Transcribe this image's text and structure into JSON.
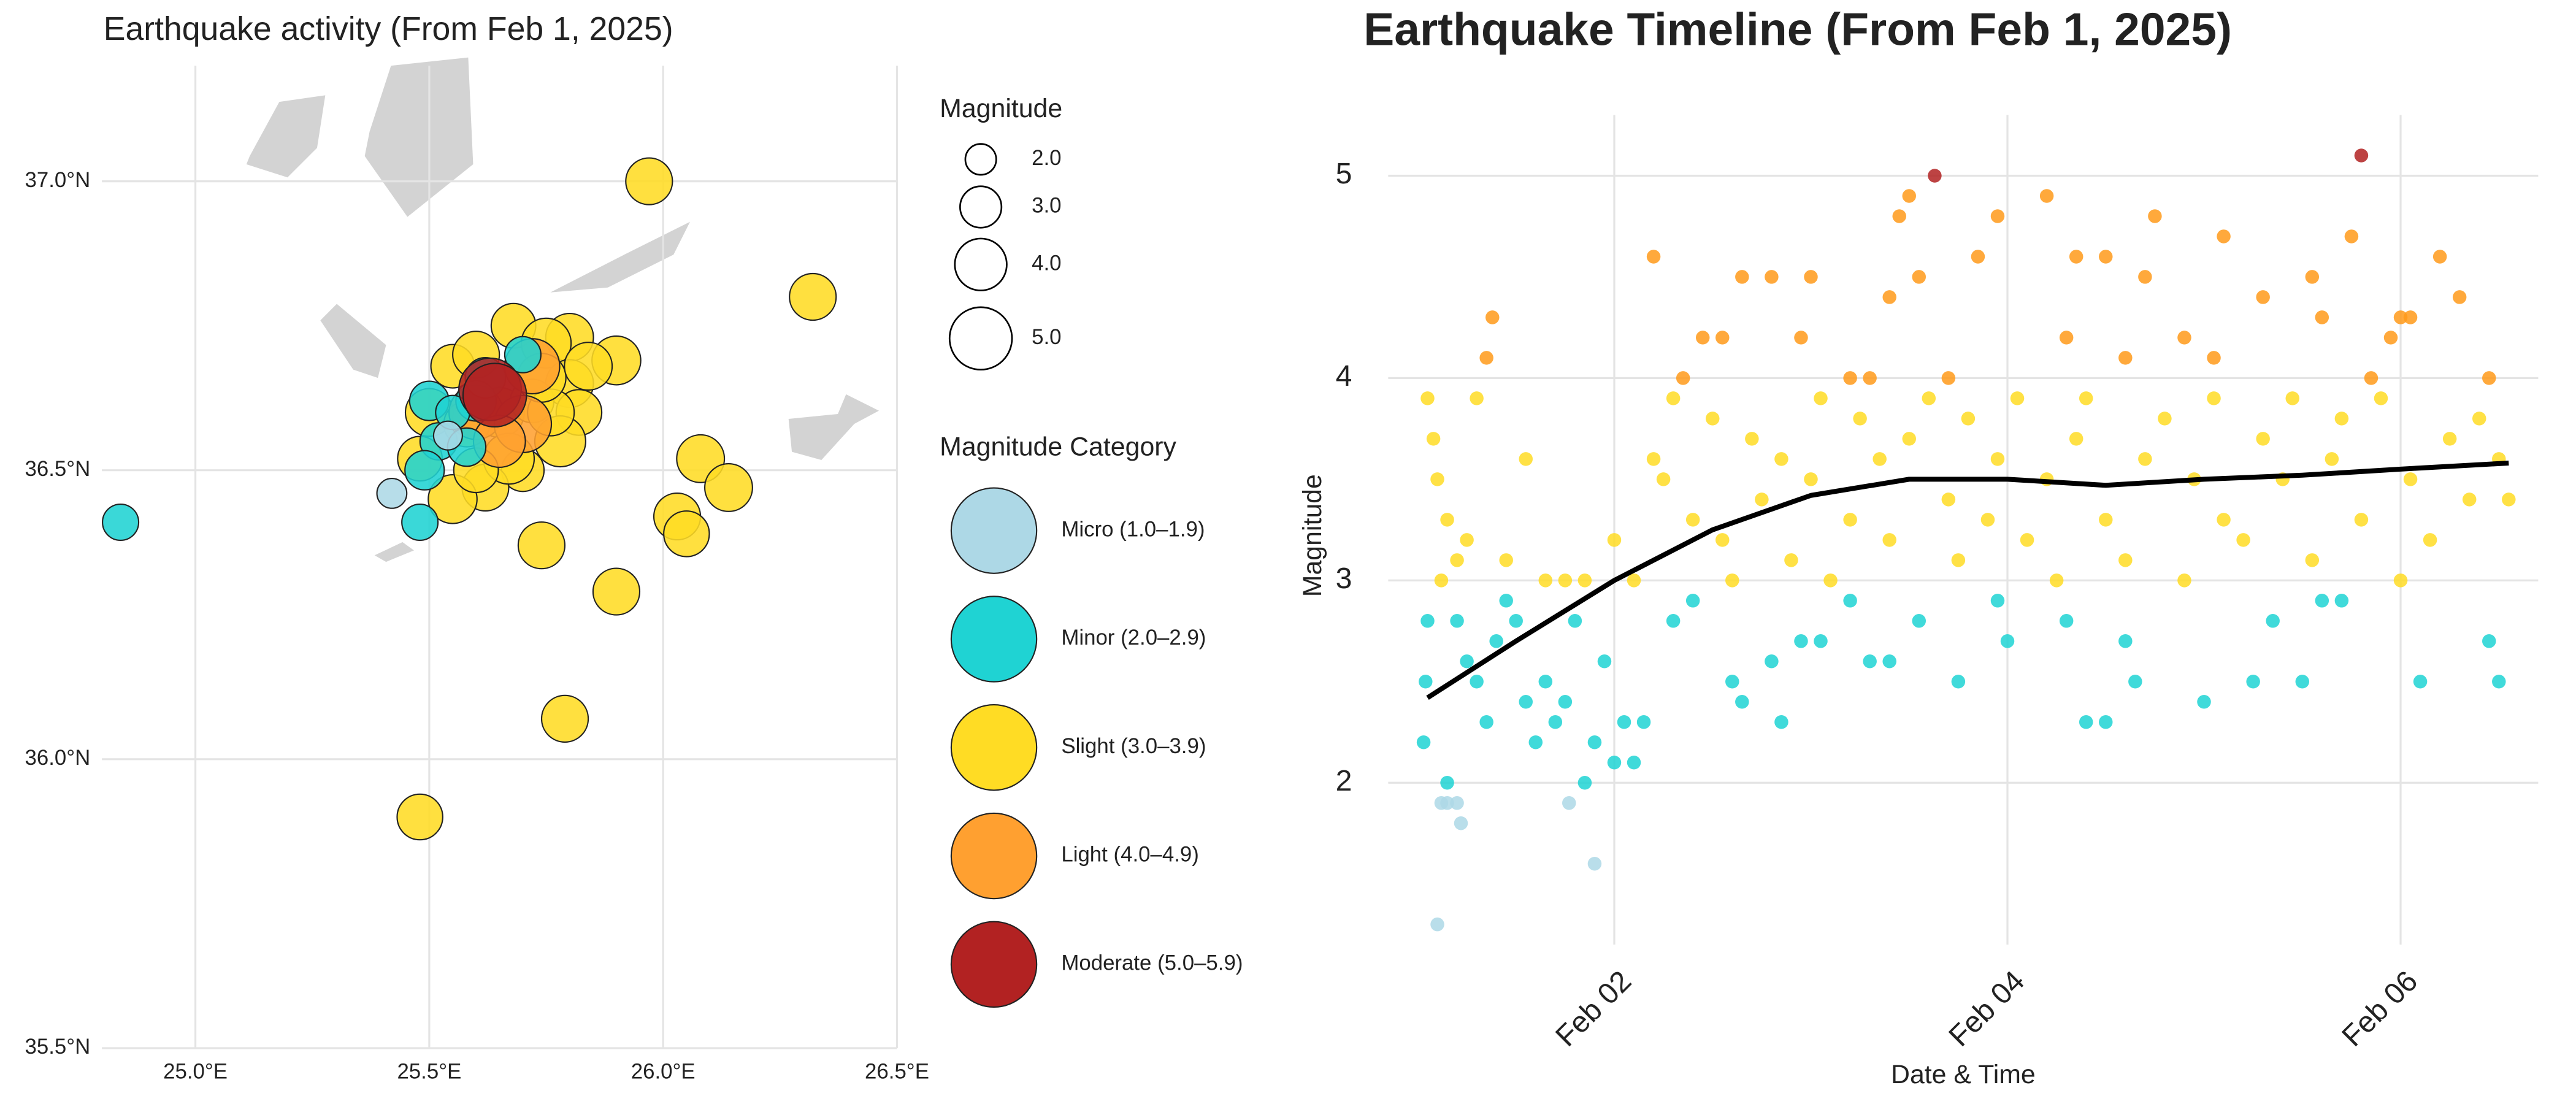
{
  "chart_data": [
    {
      "type": "map",
      "title": "Earthquake activity (From Feb 1, 2025)",
      "xlim": [
        24.8,
        26.5
      ],
      "ylim": [
        35.5,
        37.2
      ],
      "xticks": [
        {
          "value": 25,
          "label": "25.0°E"
        },
        {
          "value": 25.5,
          "label": "25.5°E"
        },
        {
          "value": 26,
          "label": "26.0°E"
        },
        {
          "value": 26.5,
          "label": "26.5°E"
        }
      ],
      "yticks": [
        {
          "value": 35.5,
          "label": "35.5°N"
        },
        {
          "value": 36,
          "label": "36.0°N"
        },
        {
          "value": 36.5,
          "label": "36.5°N"
        },
        {
          "value": 37,
          "label": "37.0°N"
        }
      ],
      "grid": true,
      "size_legend": {
        "title": "Magnitude",
        "values": [
          {
            "value": 2,
            "label": "2.0"
          },
          {
            "value": 3,
            "label": "3.0"
          },
          {
            "value": 4,
            "label": "4.0"
          },
          {
            "value": 5,
            "label": "5.0"
          }
        ]
      },
      "legend_title": "Magnitude Category",
      "series": [
        {
          "name": "Micro (1.0–1.9)",
          "color": "#add8e6",
          "x": [
            25.42,
            25.54
          ],
          "values": [
            36.46,
            36.56
          ],
          "sizes": [
            1.9,
            1.8
          ]
        },
        {
          "name": "Minor (2.0–2.9)",
          "color": "#1fd3d3",
          "x": [
            24.84,
            25.48,
            25.5,
            25.52,
            25.58,
            25.6,
            25.7,
            25.55,
            25.49,
            25.62
          ],
          "values": [
            36.41,
            36.41,
            36.62,
            36.55,
            36.54,
            36.62,
            36.7,
            36.6,
            36.5,
            36.66
          ],
          "sizes": [
            2.5,
            2.5,
            2.8,
            2.6,
            2.7,
            2.9,
            2.5,
            2.3,
            2.8,
            2.9
          ]
        },
        {
          "name": "Slight (3.0–3.9)",
          "color": "#ffdc24",
          "x": [
            25.97,
            26.32,
            26.08,
            26.14,
            26.03,
            26.05,
            25.9,
            25.79,
            25.48,
            25.74,
            25.9,
            25.8,
            25.55,
            25.6,
            25.68,
            25.75,
            25.8,
            25.82,
            25.78,
            25.7,
            25.62,
            25.55,
            25.48,
            25.5,
            25.65,
            25.72,
            25.58,
            25.67,
            25.76,
            25.74,
            25.6,
            25.84
          ],
          "values": [
            37.0,
            36.8,
            36.52,
            36.47,
            36.42,
            36.39,
            36.29,
            36.07,
            35.9,
            36.37,
            36.69,
            36.73,
            36.68,
            36.7,
            36.75,
            36.72,
            36.65,
            36.6,
            36.55,
            36.5,
            36.47,
            36.45,
            36.52,
            36.6,
            36.6,
            36.62,
            36.58,
            36.52,
            36.6,
            36.66,
            36.5,
            36.68
          ],
          "sizes": [
            3.5,
            3.5,
            3.6,
            3.6,
            3.5,
            3.4,
            3.5,
            3.5,
            3.4,
            3.5,
            3.7,
            3.6,
            3.2,
            3.5,
            3.3,
            3.8,
            3.6,
            3.4,
            3.9,
            3.1,
            3.5,
            3.7,
            3.3,
            3.6,
            3.8,
            3.2,
            3.4,
            3.9,
            3.5,
            3.7,
            3.3,
            3.6
          ]
        },
        {
          "name": "Light (4.0–4.9)",
          "color": "#ffa030",
          "x": [
            25.6,
            25.7,
            25.65,
            25.72
          ],
          "values": [
            36.6,
            36.58,
            36.55,
            36.68
          ],
          "sizes": [
            4.2,
            4.5,
            4.0,
            4.3
          ]
        },
        {
          "name": "Moderate (5.0–5.9)",
          "color": "#b22222",
          "x": [
            25.63,
            25.64
          ],
          "values": [
            36.64,
            36.63
          ],
          "sizes": [
            5.0,
            5.1
          ]
        }
      ]
    },
    {
      "type": "scatter",
      "title": "Earthquake Timeline (From Feb 1, 2025)",
      "x_label": "Date & Time",
      "y_label": "Magnitude",
      "xlim": [
        0.85,
        6.7
      ],
      "ylim": [
        1.2,
        5.3
      ],
      "xticks": [
        {
          "value": 2,
          "label": "Feb 02"
        },
        {
          "value": 4,
          "label": "Feb 04"
        },
        {
          "value": 6,
          "label": "Feb 06"
        }
      ],
      "yticks": [
        2,
        3,
        4,
        5
      ],
      "grid": true,
      "series": [
        {
          "color": "#add8e6",
          "x": [
            1.1,
            1.12,
            1.15,
            1.2,
            1.22,
            1.77,
            1.9
          ],
          "values": [
            1.3,
            1.9,
            1.9,
            1.9,
            1.8,
            1.9,
            1.6
          ]
        },
        {
          "color": "#1fd3d3",
          "x": [
            1.03,
            1.04,
            1.05,
            1.15,
            1.2,
            1.25,
            1.3,
            1.35,
            1.4,
            1.45,
            1.5,
            1.55,
            1.6,
            1.65,
            1.7,
            1.75,
            1.8,
            1.85,
            1.9,
            1.95,
            2.0,
            2.05,
            2.1,
            2.15,
            2.3,
            2.4,
            2.6,
            2.65,
            2.8,
            2.85,
            2.95,
            3.05,
            3.2,
            3.3,
            3.4,
            3.55,
            3.75,
            3.95,
            4.0,
            4.3,
            4.4,
            4.5,
            4.6,
            4.65,
            5.0,
            5.25,
            5.35,
            5.5,
            5.6,
            5.7,
            6.1,
            6.45,
            6.5
          ],
          "values": [
            2.2,
            2.5,
            2.8,
            2.0,
            2.8,
            2.6,
            2.5,
            2.3,
            2.7,
            2.9,
            2.8,
            2.4,
            2.2,
            2.5,
            2.3,
            2.4,
            2.8,
            2.0,
            2.2,
            2.6,
            2.1,
            2.3,
            2.1,
            2.3,
            2.8,
            2.9,
            2.5,
            2.4,
            2.6,
            2.3,
            2.7,
            2.7,
            2.9,
            2.6,
            2.6,
            2.8,
            2.5,
            2.9,
            2.7,
            2.8,
            2.3,
            2.3,
            2.7,
            2.5,
            2.4,
            2.5,
            2.8,
            2.5,
            2.9,
            2.9,
            2.5,
            2.7,
            2.5
          ]
        },
        {
          "color": "#ffdc24",
          "x": [
            1.05,
            1.08,
            1.1,
            1.12,
            1.15,
            1.2,
            1.25,
            1.3,
            1.45,
            1.55,
            1.65,
            1.75,
            1.85,
            2.0,
            2.1,
            2.2,
            2.25,
            2.3,
            2.4,
            2.5,
            2.55,
            2.6,
            2.7,
            2.75,
            2.85,
            2.9,
            3.0,
            3.05,
            3.1,
            3.2,
            3.25,
            3.35,
            3.4,
            3.5,
            3.6,
            3.7,
            3.75,
            3.8,
            3.9,
            3.95,
            4.05,
            4.1,
            4.2,
            4.25,
            4.35,
            4.4,
            4.5,
            4.6,
            4.7,
            4.8,
            4.9,
            4.95,
            5.05,
            5.1,
            5.2,
            5.3,
            5.4,
            5.45,
            5.55,
            5.65,
            5.7,
            5.8,
            5.9,
            6.0,
            6.05,
            6.15,
            6.25,
            6.35,
            6.4,
            6.5,
            6.55
          ],
          "values": [
            3.9,
            3.7,
            3.5,
            3.0,
            3.3,
            3.1,
            3.2,
            3.9,
            3.1,
            3.6,
            3.0,
            3.0,
            3.0,
            3.2,
            3.0,
            3.6,
            3.5,
            3.9,
            3.3,
            3.8,
            3.2,
            3.0,
            3.7,
            3.4,
            3.6,
            3.1,
            3.5,
            3.9,
            3.0,
            3.3,
            3.8,
            3.6,
            3.2,
            3.7,
            3.9,
            3.4,
            3.1,
            3.8,
            3.3,
            3.6,
            3.9,
            3.2,
            3.5,
            3.0,
            3.7,
            3.9,
            3.3,
            3.1,
            3.6,
            3.8,
            3.0,
            3.5,
            3.9,
            3.3,
            3.2,
            3.7,
            3.5,
            3.9,
            3.1,
            3.6,
            3.8,
            3.3,
            3.9,
            3.0,
            3.5,
            3.2,
            3.7,
            3.4,
            3.8,
            3.6,
            3.4
          ]
        },
        {
          "color": "#ff9a1a",
          "x": [
            1.35,
            1.38,
            2.2,
            2.35,
            2.45,
            2.55,
            2.65,
            2.8,
            2.95,
            3.0,
            3.2,
            3.3,
            3.4,
            3.45,
            3.5,
            3.55,
            3.7,
            3.85,
            3.95,
            4.2,
            4.3,
            4.35,
            4.5,
            4.6,
            4.7,
            4.75,
            4.9,
            5.05,
            5.1,
            5.3,
            5.55,
            5.6,
            5.75,
            5.85,
            5.95,
            6.0,
            6.05,
            6.2,
            6.3,
            6.45
          ],
          "values": [
            4.1,
            4.3,
            4.6,
            4.0,
            4.2,
            4.2,
            4.5,
            4.5,
            4.2,
            4.5,
            4.0,
            4.0,
            4.4,
            4.8,
            4.9,
            4.5,
            4.0,
            4.6,
            4.8,
            4.9,
            4.2,
            4.6,
            4.6,
            4.1,
            4.5,
            4.8,
            4.2,
            4.1,
            4.7,
            4.4,
            4.5,
            4.3,
            4.7,
            4.0,
            4.2,
            4.3,
            4.3,
            4.6,
            4.4,
            4.0
          ]
        },
        {
          "color": "#b22222",
          "x": [
            3.63,
            5.8
          ],
          "values": [
            5.0,
            5.1
          ]
        }
      ],
      "trend": {
        "color": "#000000",
        "x": [
          1.05,
          1.5,
          2.0,
          2.5,
          3.0,
          3.5,
          4.0,
          4.5,
          5.0,
          5.5,
          6.0,
          6.55
        ],
        "values": [
          2.42,
          2.7,
          3.0,
          3.25,
          3.42,
          3.5,
          3.5,
          3.47,
          3.5,
          3.52,
          3.55,
          3.58
        ]
      }
    }
  ]
}
